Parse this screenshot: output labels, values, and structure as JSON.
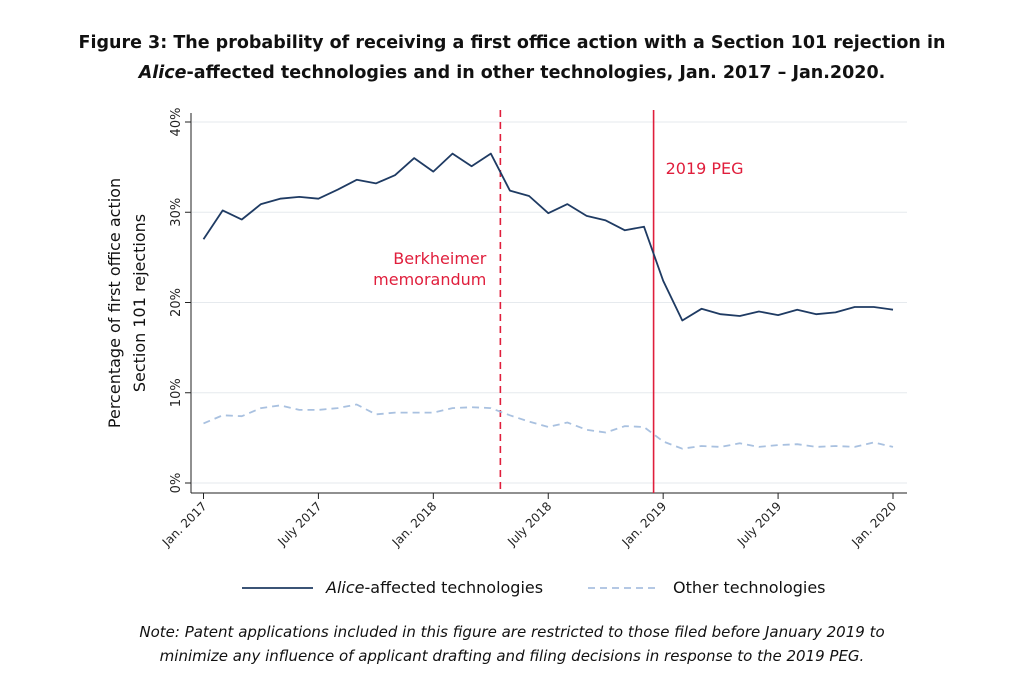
{
  "title_line1": "Figure 3: The probability of receiving a first office action with a Section 101 rejection in",
  "title_line2_italic": "Alice",
  "title_line2_rest": "-affected technologies and in other technologies, Jan. 2017 – Jan.2020.",
  "note_line1": "Note: Patent applications included in this figure are restricted to those filed before January 2019 to",
  "note_line2": "minimize any influence of applicant drafting and filing decisions in response to the 2019 PEG.",
  "chart_data": {
    "type": "line",
    "ylabel": [
      "Percentage of first office action",
      "Section 101 rejections"
    ],
    "ylim": [
      0,
      40
    ],
    "y_ticks": [
      "0%",
      "10%",
      "20%",
      "30%",
      "40%"
    ],
    "x_ticks": [
      "Jan. 2017",
      "July 2017",
      "Jan. 2018",
      "July 2018",
      "Jan. 2019",
      "July 2019",
      "Jan. 2020"
    ],
    "x_tick_months": [
      0,
      6,
      12,
      18,
      24,
      30,
      36
    ],
    "x_months": [
      0,
      1,
      2,
      3,
      4,
      5,
      6,
      7,
      8,
      9,
      10,
      11,
      12,
      13,
      14,
      15,
      16,
      17,
      18,
      19,
      20,
      21,
      22,
      23,
      24,
      25,
      26,
      27,
      28,
      29,
      30,
      31,
      32,
      33,
      34,
      35,
      36
    ],
    "series": [
      {
        "name_italic": "Alice",
        "name_rest": "-affected technologies",
        "style": "solid",
        "color": "#1f3b63",
        "values": [
          27.0,
          30.2,
          29.2,
          30.9,
          31.5,
          31.7,
          31.5,
          32.5,
          33.6,
          33.2,
          34.1,
          36.0,
          34.5,
          36.5,
          35.1,
          36.5,
          32.4,
          31.8,
          29.9,
          30.9,
          29.6,
          29.1,
          28.0,
          28.4,
          22.4,
          18.0,
          19.3,
          18.7,
          18.5,
          19.0,
          18.6,
          19.2,
          18.7,
          18.9,
          19.5,
          19.5,
          19.2
        ]
      },
      {
        "name": "Other technologies",
        "style": "dashed",
        "color": "#a9c1e0",
        "values": [
          6.6,
          7.5,
          7.4,
          8.3,
          8.6,
          8.1,
          8.1,
          8.3,
          8.7,
          7.6,
          7.8,
          7.8,
          7.8,
          8.3,
          8.4,
          8.3,
          7.5,
          6.8,
          6.2,
          6.7,
          5.9,
          5.6,
          6.3,
          6.2,
          4.6,
          3.8,
          4.1,
          4.0,
          4.4,
          4.0,
          4.2,
          4.3,
          4.0,
          4.1,
          4.0,
          4.5,
          4.0
        ]
      }
    ],
    "annotations": [
      {
        "label": [
          "Berkheimer",
          "memorandum"
        ],
        "x_month": 15.5,
        "style": "dashed",
        "color": "#e01e3c"
      },
      {
        "label": [
          "2019 PEG"
        ],
        "x_month": 23.5,
        "style": "solid",
        "color": "#e01e3c"
      }
    ],
    "grid": true,
    "legend_position": "bottom"
  }
}
